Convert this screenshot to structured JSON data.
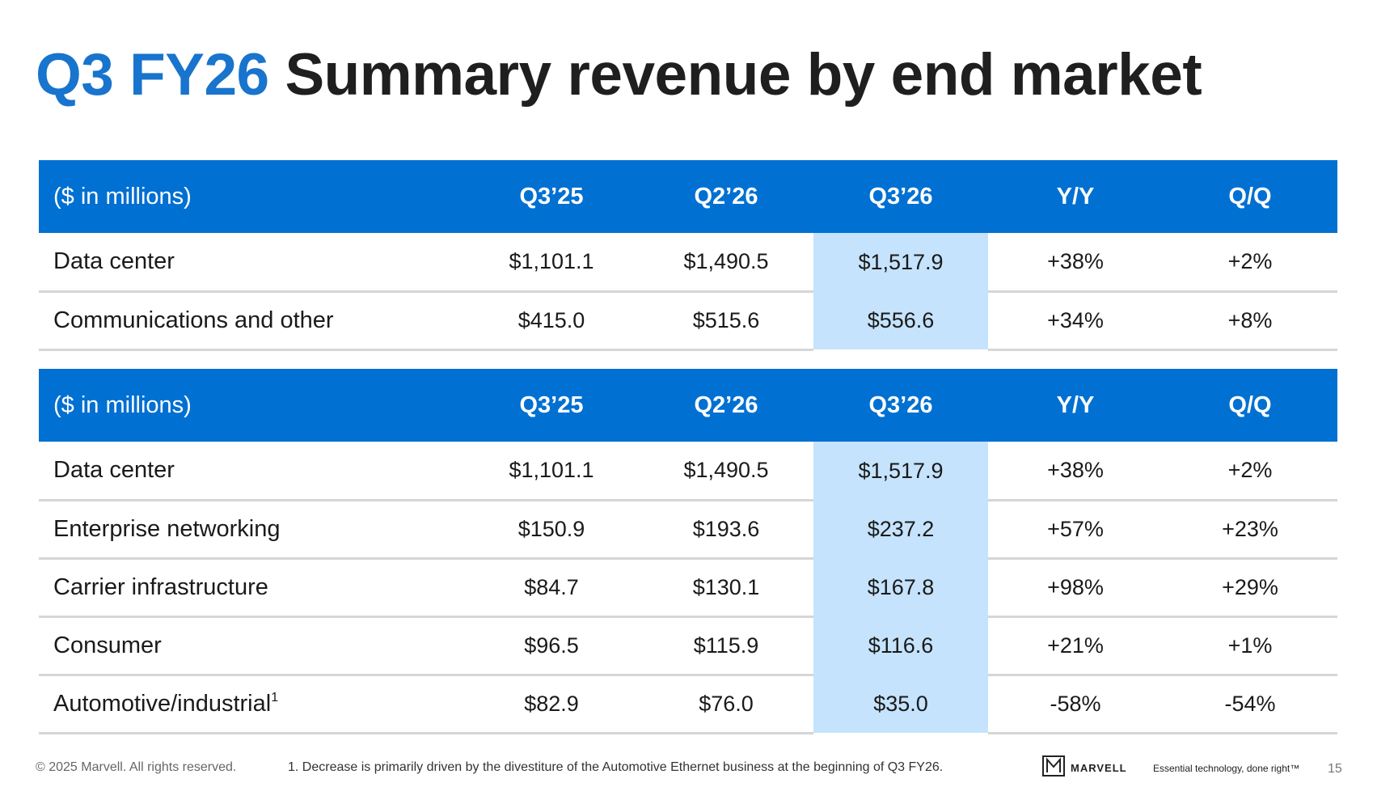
{
  "title": {
    "accent": "Q3 FY26",
    "rest": "Summary revenue by end market"
  },
  "table1": {
    "headers": [
      "($ in millions)",
      "Q3’25",
      "Q2’26",
      "Q3’26",
      "Y/Y",
      "Q/Q"
    ],
    "rows": [
      {
        "label": "Data center",
        "cells": [
          "$1,101.1",
          "$1,490.5",
          "$1,517.9",
          "+38%",
          "+2%"
        ]
      },
      {
        "label": "Communications and other",
        "cells": [
          "$415.0",
          "$515.6",
          "$556.6",
          "+34%",
          "+8%"
        ]
      }
    ]
  },
  "table2": {
    "headers": [
      "($ in millions)",
      "Q3’25",
      "Q2’26",
      "Q3’26",
      "Y/Y",
      "Q/Q"
    ],
    "rows": [
      {
        "label": "Data center",
        "cells": [
          "$1,101.1",
          "$1,490.5",
          "$1,517.9",
          "+38%",
          "+2%"
        ]
      },
      {
        "label": "Enterprise networking",
        "cells": [
          "$150.9",
          "$193.6",
          "$237.2",
          "+57%",
          "+23%"
        ]
      },
      {
        "label": "Carrier infrastructure",
        "cells": [
          "$84.7",
          "$130.1",
          "$167.8",
          "+98%",
          "+29%"
        ]
      },
      {
        "label": "Consumer",
        "cells": [
          "$96.5",
          "$115.9",
          "$116.6",
          "+21%",
          "+1%"
        ]
      },
      {
        "label": "Automotive/industrial",
        "footnote_marker": "1",
        "cells": [
          "$82.9",
          "$76.0",
          "$35.0",
          "-58%",
          "-54%"
        ]
      }
    ]
  },
  "footer": {
    "copyright": "© 2025 Marvell. All rights reserved.",
    "footnote": "1. Decrease is primarily driven by the divestiture of the Automotive Ethernet business at the beginning of Q3 FY26.",
    "brand": "MARVELL",
    "tagline": "Essential technology, done right™",
    "page": "15"
  },
  "colors": {
    "accent": "#1874CD",
    "header_bg": "#0070D2",
    "highlight": "#C5E3FC"
  }
}
